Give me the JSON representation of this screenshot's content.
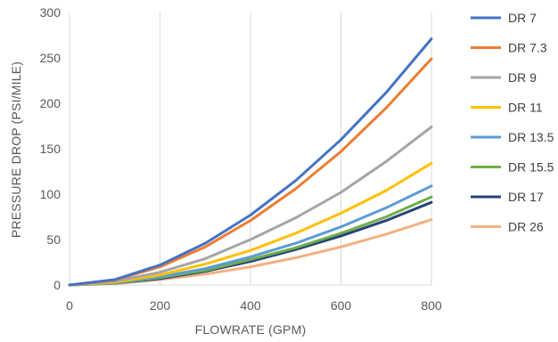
{
  "chart_data": {
    "type": "line",
    "xlabel": "FLOWRATE (GPM)",
    "ylabel": "PRESSURE DROP (PSI/MILE)",
    "xlim": [
      0,
      800
    ],
    "ylim": [
      0,
      300
    ],
    "xticks": [
      0,
      200,
      400,
      600,
      800
    ],
    "yticks": [
      0,
      50,
      100,
      150,
      200,
      250,
      300
    ],
    "grid": "vertical",
    "legend_position": "right",
    "x": [
      0,
      100,
      200,
      300,
      400,
      500,
      600,
      700,
      800
    ],
    "series": [
      {
        "name": "DR 7",
        "color": "#4472C4",
        "values": [
          0,
          6,
          22,
          46,
          77,
          115,
          160,
          212,
          271
        ]
      },
      {
        "name": "DR 7.3",
        "color": "#ED7D31",
        "values": [
          0,
          5.5,
          20,
          42,
          71,
          106,
          147,
          195,
          249
        ]
      },
      {
        "name": "DR 9",
        "color": "#A5A5A5",
        "values": [
          0,
          4,
          14,
          29,
          50,
          74,
          102,
          136,
          174
        ]
      },
      {
        "name": "DR 11",
        "color": "#FFC000",
        "values": [
          0,
          3,
          11,
          23,
          38,
          57,
          79,
          104,
          134
        ]
      },
      {
        "name": "DR 13.5",
        "color": "#5B9BD5",
        "values": [
          0,
          2.5,
          9,
          18,
          31,
          46,
          64,
          85,
          109
        ]
      },
      {
        "name": "DR 15.5",
        "color": "#70AD47",
        "values": [
          0,
          2,
          8,
          16,
          28,
          41,
          57,
          75,
          97
        ]
      },
      {
        "name": "DR 17",
        "color": "#264478",
        "values": [
          0,
          2,
          7,
          15,
          26,
          39,
          54,
          71,
          91
        ]
      },
      {
        "name": "DR 26",
        "color": "#F4B183",
        "values": [
          0,
          1.5,
          6,
          12,
          20,
          30,
          42,
          56,
          72
        ]
      }
    ]
  }
}
